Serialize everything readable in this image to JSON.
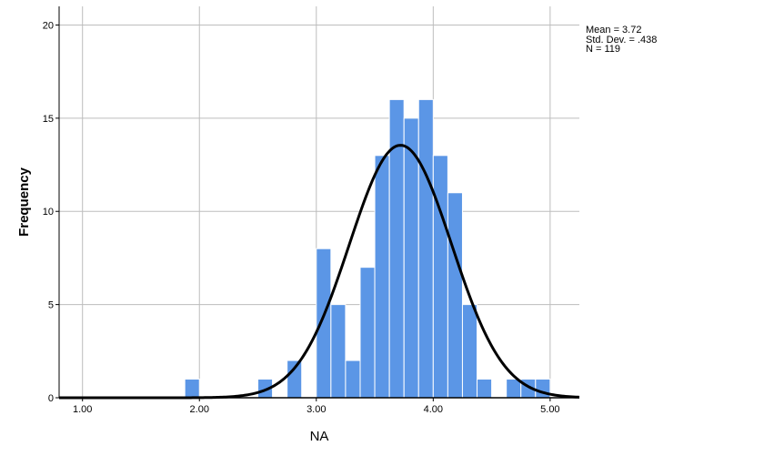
{
  "chart_data": {
    "type": "bar",
    "subtype": "histogram",
    "xlabel": "NA",
    "ylabel": "Frequency",
    "xlim": [
      0.8,
      5.25
    ],
    "ylim": [
      0,
      21
    ],
    "x_ticks": [
      {
        "value": 1,
        "label": "1.00"
      },
      {
        "value": 2,
        "label": "2.00"
      },
      {
        "value": 3,
        "label": "3.00"
      },
      {
        "value": 4,
        "label": "4.00"
      },
      {
        "value": 5,
        "label": "5.00"
      }
    ],
    "y_ticks": [
      {
        "value": 0,
        "label": "0"
      },
      {
        "value": 5,
        "label": "5"
      },
      {
        "value": 10,
        "label": "10"
      },
      {
        "value": 15,
        "label": "15"
      },
      {
        "value": 20,
        "label": "20"
      }
    ],
    "bin_width": 0.125,
    "bins": [
      {
        "start": 1.875,
        "count": 1
      },
      {
        "start": 2.5,
        "count": 1
      },
      {
        "start": 2.75,
        "count": 2
      },
      {
        "start": 3.0,
        "count": 8
      },
      {
        "start": 3.125,
        "count": 5
      },
      {
        "start": 3.25,
        "count": 2
      },
      {
        "start": 3.375,
        "count": 7
      },
      {
        "start": 3.5,
        "count": 13
      },
      {
        "start": 3.625,
        "count": 16
      },
      {
        "start": 3.75,
        "count": 15
      },
      {
        "start": 3.875,
        "count": 16
      },
      {
        "start": 4.0,
        "count": 13
      },
      {
        "start": 4.125,
        "count": 11
      },
      {
        "start": 4.25,
        "count": 5
      },
      {
        "start": 4.375,
        "count": 1
      },
      {
        "start": 4.625,
        "count": 1
      },
      {
        "start": 4.75,
        "count": 1
      },
      {
        "start": 4.875,
        "count": 1
      }
    ],
    "normal_curve": {
      "mean": 3.72,
      "std": 0.438,
      "n": 119
    },
    "stats_labels": [
      "Mean = 3.72",
      "Std. Dev. = .438",
      "N = 119"
    ],
    "bar_color": "#5b96e6",
    "bar_edge_color": "#ffffff",
    "curve_color": "#000000",
    "grid": true,
    "grid_color": "#bdbdbd",
    "legend": "none",
    "stats_position": "top-right"
  }
}
